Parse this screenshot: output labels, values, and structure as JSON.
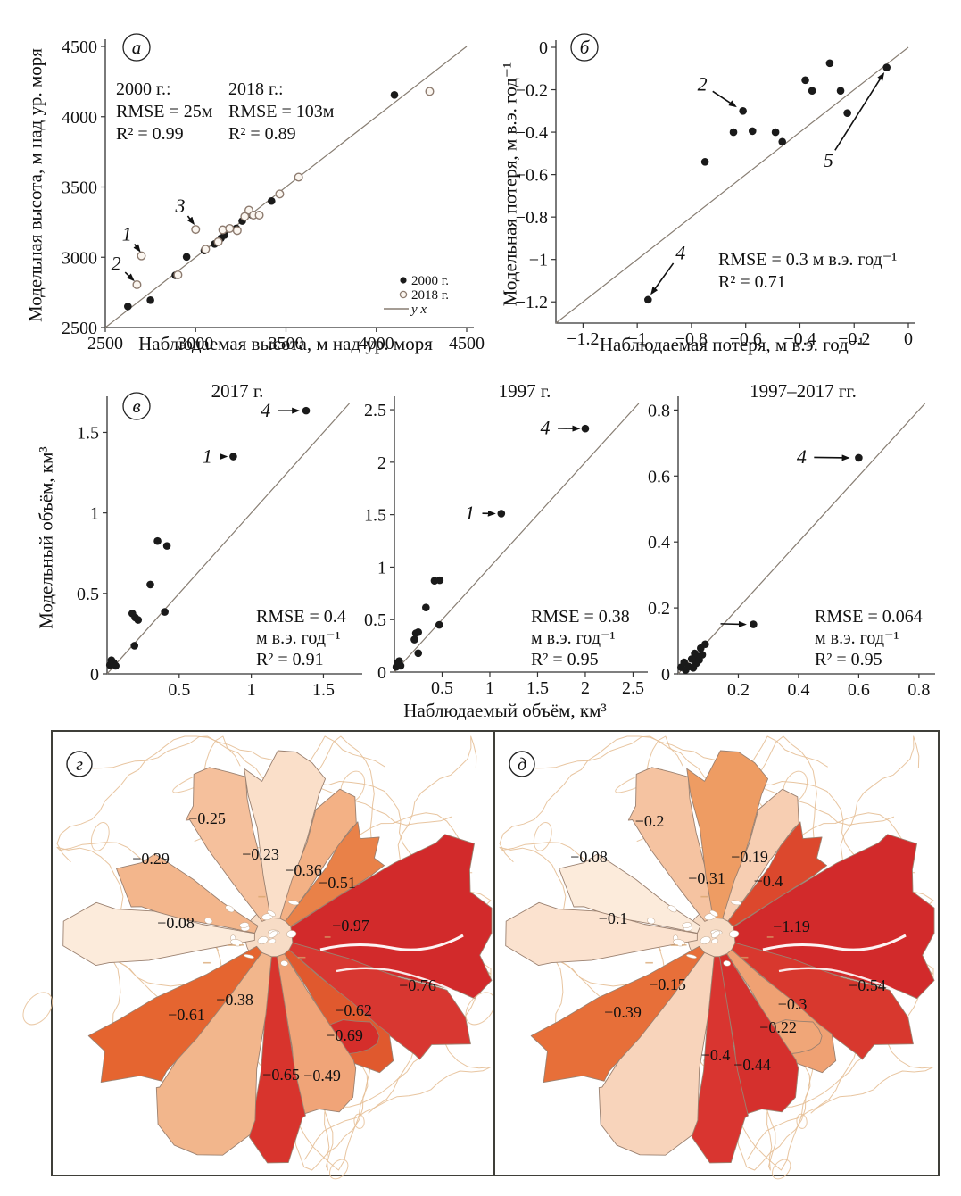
{
  "volume_axis": {
    "xlabel": "Наблюдаемый объём, км³",
    "ylabel": "Модельный объём, км³"
  },
  "chart_data": [
    {
      "id": "a",
      "type": "scatter",
      "panel_letter": "а",
      "xlabel": "Наблюдаемая высота, м над ур. моря",
      "ylabel": "Модельная высота, м над ур. моря",
      "xlim": [
        2500,
        4500
      ],
      "ylim": [
        2500,
        4500
      ],
      "xticks": {
        "v": [
          2500,
          3000,
          3500,
          4000,
          4500
        ],
        "labels": [
          "2500",
          "3000",
          "3500",
          "4000",
          "4500"
        ]
      },
      "yticks": {
        "v": [
          2500,
          3000,
          3500,
          4000,
          4500
        ],
        "labels": [
          "2500",
          "3000",
          "3500",
          "4000",
          "4500"
        ]
      },
      "identity_line": true,
      "series": [
        {
          "name": "2000 г.",
          "marker": "filled",
          "color": "#1a1a1a",
          "points": [
            [
              2625,
              2650
            ],
            [
              2750,
              2695
            ],
            [
              2888,
              2872
            ],
            [
              2950,
              3003
            ],
            [
              3048,
              3048
            ],
            [
              3105,
              3095
            ],
            [
              3140,
              3135
            ],
            [
              3160,
              3158
            ],
            [
              3225,
              3205
            ],
            [
              3258,
              3258
            ],
            [
              3310,
              3302
            ],
            [
              3420,
              3400
            ],
            [
              4100,
              4155
            ]
          ]
        },
        {
          "name": "2018 г.",
          "marker": "open",
          "color": "#8d7b6f",
          "points": [
            [
              2700,
              3010
            ],
            [
              2675,
              2805
            ],
            [
              3000,
              3198
            ],
            [
              2902,
              2875
            ],
            [
              3055,
              3057
            ],
            [
              3125,
              3110
            ],
            [
              3150,
              3195
            ],
            [
              3188,
              3205
            ],
            [
              3230,
              3190
            ],
            [
              3272,
              3290
            ],
            [
              3295,
              3335
            ],
            [
              3320,
              3300
            ],
            [
              3352,
              3300
            ],
            [
              3465,
              3450
            ],
            [
              3570,
              3570
            ],
            [
              4295,
              4180
            ]
          ]
        }
      ],
      "stats": [
        [
          "2000 г.:",
          "RMSE = 25м",
          "R² = 0.99"
        ],
        [
          "2018 г.:",
          "RMSE = 103м",
          "R² = 0.89"
        ]
      ],
      "legend": [
        {
          "marker": "filled",
          "label": "2000 г."
        },
        {
          "marker": "open",
          "label": "2018 г."
        },
        {
          "marker": "line",
          "label": "y x"
        }
      ],
      "annotations": [
        {
          "text": "1",
          "tx": 2620,
          "ty": 3165,
          "ax": 2690,
          "ay": 3045
        },
        {
          "text": "2",
          "tx": 2560,
          "ty": 2955,
          "ax": 2655,
          "ay": 2838
        },
        {
          "text": "3",
          "tx": 2915,
          "ty": 3365,
          "ax": 2988,
          "ay": 3240
        }
      ]
    },
    {
      "id": "b",
      "type": "scatter",
      "panel_letter": "б",
      "xlabel": "Наблюдаемая потеря, м в.э. год⁻¹",
      "ylabel": "Модельная потеря, м в.э. год⁻¹",
      "xlim": [
        -1.3,
        0
      ],
      "ylim": [
        -1.3,
        0
      ],
      "xticks": {
        "v": [
          -1.2,
          -1,
          -0.8,
          -0.6,
          -0.4,
          -0.2,
          0
        ],
        "labels": [
          "−1.2",
          "−1",
          "−0.8",
          "−0.6",
          "−0.4",
          "−0.2",
          "0"
        ]
      },
      "yticks": {
        "v": [
          0,
          -0.2,
          -0.4,
          -0.6,
          -0.8,
          -1,
          -1.2
        ],
        "labels": [
          "0",
          "−0.2",
          "−0.4",
          "−0.6",
          "−0.8",
          "−1",
          "−1.2"
        ]
      },
      "identity_line": true,
      "series": [
        {
          "name": "points",
          "marker": "filled",
          "color": "#1a1a1a",
          "points": [
            [
              -0.96,
              -1.19
            ],
            [
              -0.75,
              -0.54
            ],
            [
              -0.645,
              -0.4
            ],
            [
              -0.61,
              -0.3
            ],
            [
              -0.575,
              -0.395
            ],
            [
              -0.49,
              -0.4
            ],
            [
              -0.465,
              -0.445
            ],
            [
              -0.38,
              -0.155
            ],
            [
              -0.355,
              -0.205
            ],
            [
              -0.29,
              -0.075
            ],
            [
              -0.25,
              -0.205
            ],
            [
              -0.225,
              -0.31
            ],
            [
              -0.08,
              -0.095
            ]
          ]
        }
      ],
      "stats": [
        [
          "RMSE = 0.3 м в.э. год⁻¹",
          "R² = 0.71"
        ]
      ],
      "annotations": [
        {
          "text": "2",
          "tx": -0.76,
          "ty": -0.175,
          "ax": -0.638,
          "ay": -0.278
        },
        {
          "text": "4",
          "tx": -0.84,
          "ty": -0.97,
          "ax": -0.947,
          "ay": -1.16
        },
        {
          "text": "5",
          "tx": -0.295,
          "ty": -0.535,
          "ax": -0.092,
          "ay": -0.125
        }
      ]
    },
    {
      "id": "v1",
      "type": "scatter",
      "panel_letter": "в",
      "title": "2017 г.",
      "xlim": [
        0,
        1.72
      ],
      "ylim": [
        0,
        1.68
      ],
      "xticks": {
        "v": [
          0.5,
          1,
          1.5
        ],
        "labels": [
          "0.5",
          "1",
          "1.5"
        ]
      },
      "yticks": {
        "v": [
          0,
          0.5,
          1,
          1.5
        ],
        "labels": [
          "0",
          "0.5",
          "1",
          "1.5"
        ]
      },
      "identity_line": true,
      "series": [
        {
          "name": "points",
          "marker": "filled",
          "color": "#1a1a1a",
          "points": [
            [
              0.02,
              0.055
            ],
            [
              0.03,
              0.085
            ],
            [
              0.045,
              0.07
            ],
            [
              0.06,
              0.05
            ],
            [
              0.19,
              0.175
            ],
            [
              0.175,
              0.375
            ],
            [
              0.195,
              0.35
            ],
            [
              0.215,
              0.335
            ],
            [
              0.3,
              0.555
            ],
            [
              0.35,
              0.825
            ],
            [
              0.415,
              0.795
            ],
            [
              0.4,
              0.385
            ],
            [
              0.875,
              1.35
            ],
            [
              1.38,
              1.635
            ]
          ]
        }
      ],
      "stats": [
        [
          "RMSE = 0.4",
          "м в.э. год⁻¹",
          "R² = 0.91"
        ]
      ],
      "annotations": [
        {
          "text": "4",
          "tx": 1.1,
          "ty": 1.635,
          "ax": 1.325,
          "ay": 1.635
        },
        {
          "text": "1",
          "tx": 0.695,
          "ty": 1.35,
          "ax": 0.825,
          "ay": 1.35
        }
      ]
    },
    {
      "id": "v2",
      "type": "scatter",
      "title": "1997 г.",
      "xlim": [
        0,
        2.58
      ],
      "ylim": [
        0,
        2.56
      ],
      "xticks": {
        "v": [
          0.5,
          1,
          1.5,
          2,
          2.5
        ],
        "labels": [
          "0.5",
          "1",
          "1.5",
          "2",
          "2.5"
        ]
      },
      "yticks": {
        "v": [
          0,
          0.5,
          1,
          1.5,
          2,
          2.5
        ],
        "labels": [
          "0",
          "0.5",
          "1",
          "1.5",
          "2",
          "2.5"
        ]
      },
      "identity_line": true,
      "series": [
        {
          "name": "points",
          "marker": "filled",
          "color": "#1a1a1a",
          "points": [
            [
              0.02,
              0.05
            ],
            [
              0.035,
              0.09
            ],
            [
              0.05,
              0.105
            ],
            [
              0.065,
              0.06
            ],
            [
              0.25,
              0.18
            ],
            [
              0.21,
              0.31
            ],
            [
              0.225,
              0.37
            ],
            [
              0.25,
              0.38
            ],
            [
              0.33,
              0.615
            ],
            [
              0.42,
              0.87
            ],
            [
              0.475,
              0.875
            ],
            [
              0.47,
              0.45
            ],
            [
              1.12,
              1.51
            ],
            [
              2.0,
              2.32
            ]
          ]
        }
      ],
      "stats": [
        [
          "RMSE = 0.38",
          "м в.э. год⁻¹",
          "R² = 0.95"
        ]
      ],
      "annotations": [
        {
          "text": "4",
          "tx": 1.58,
          "ty": 2.325,
          "ax": 1.93,
          "ay": 2.32
        },
        {
          "text": "1",
          "tx": 0.79,
          "ty": 1.515,
          "ax": 1.045,
          "ay": 1.51
        }
      ]
    },
    {
      "id": "v3",
      "type": "scatter",
      "title": "1997–2017 гг.",
      "xlim": [
        0,
        0.83
      ],
      "ylim": [
        0,
        0.82
      ],
      "xticks": {
        "v": [
          0.2,
          0.4,
          0.6,
          0.8
        ],
        "labels": [
          "0.2",
          "0.4",
          "0.6",
          "0.8"
        ]
      },
      "yticks": {
        "v": [
          0,
          0.2,
          0.4,
          0.6,
          0.8
        ],
        "labels": [
          "0",
          "0.2",
          "0.4",
          "0.6",
          "0.8"
        ]
      },
      "identity_line": true,
      "series": [
        {
          "name": "points",
          "marker": "filled",
          "color": "#1a1a1a",
          "points": [
            [
              0.01,
              0.02
            ],
            [
              0.02,
              0.035
            ],
            [
              0.025,
              0.012
            ],
            [
              0.035,
              0.022
            ],
            [
              0.05,
              0.018
            ],
            [
              0.055,
              0.062
            ],
            [
              0.06,
              0.032
            ],
            [
              0.065,
              0.052
            ],
            [
              0.045,
              0.045
            ],
            [
              0.07,
              0.042
            ],
            [
              0.075,
              0.078
            ],
            [
              0.08,
              0.058
            ],
            [
              0.09,
              0.09
            ],
            [
              0.25,
              0.15
            ],
            [
              0.6,
              0.655
            ]
          ]
        }
      ],
      "stats": [
        [
          "RMSE = 0.064",
          "м в.э. год⁻¹",
          "R² = 0.95"
        ]
      ],
      "annotations": [
        {
          "text": "4",
          "tx": 0.41,
          "ty": 0.657,
          "ax": 0.565,
          "ay": 0.655
        },
        {
          "text": "",
          "tx": 0.135,
          "ty": 0.152,
          "ax": 0.222,
          "ay": 0.15
        }
      ]
    }
  ],
  "maps": {
    "contour_color": "#e6bf96",
    "glacier_outline_color": "#9b8170",
    "panels": [
      {
        "id": "g",
        "letter": "г",
        "glaciers": [
          {
            "gid": "nw",
            "value": "−0.29",
            "color": "#f3b68c",
            "lx": 110,
            "ly": 142
          },
          {
            "gid": "n1",
            "value": "−0.25",
            "color": "#f5c09c",
            "lx": 173,
            "ly": 97
          },
          {
            "gid": "n2",
            "value": "−0.23",
            "color": "#fadfc9",
            "lx": 233,
            "ly": 137
          },
          {
            "gid": "n3",
            "value": "−0.36",
            "color": "#f3b185",
            "lx": 281,
            "ly": 155
          },
          {
            "gid": "ne",
            "value": "−0.51",
            "color": "#e98148",
            "lx": 319,
            "ly": 169
          },
          {
            "gid": "w",
            "value": "−0.08",
            "color": "#fcebdb",
            "lx": 138,
            "ly": 214
          },
          {
            "gid": "e1",
            "value": "−0.97",
            "color": "#d22a2b",
            "lx": 334,
            "ly": 217
          },
          {
            "gid": "e2",
            "value": "−0.76",
            "color": "#d83731",
            "lx": 409,
            "ly": 284
          },
          {
            "gid": "se1",
            "value": "−0.62",
            "color": "#e0592e",
            "lx": 337,
            "ly": 312
          },
          {
            "gid": "se2",
            "value": "−0.69",
            "color": "#d52e2b",
            "lx": 327,
            "ly": 340
          },
          {
            "gid": "s1",
            "value": "−0.49",
            "color": "#f0a478",
            "lx": 302,
            "ly": 385
          },
          {
            "gid": "s2",
            "value": "−0.65",
            "color": "#d8342d",
            "lx": 256,
            "ly": 384
          },
          {
            "gid": "s3",
            "value": "−0.38",
            "color": "#f2b68c",
            "lx": 204,
            "ly": 300
          },
          {
            "gid": "sw",
            "value": "−0.61",
            "color": "#e56530",
            "lx": 150,
            "ly": 317
          }
        ]
      },
      {
        "id": "d",
        "letter": "д",
        "glaciers": [
          {
            "gid": "nw",
            "value": "−0.08",
            "color": "#fcebdb",
            "lx": 105,
            "ly": 140
          },
          {
            "gid": "n1",
            "value": "−0.2",
            "color": "#f5c3a1",
            "lx": 173,
            "ly": 100
          },
          {
            "gid": "n2",
            "value": "−0.31",
            "color": "#ee9c63",
            "lx": 237,
            "ly": 164
          },
          {
            "gid": "n3",
            "value": "−0.19",
            "color": "#f7ceb2",
            "lx": 285,
            "ly": 140
          },
          {
            "gid": "ne",
            "value": "−0.4",
            "color": "#dc482d",
            "lx": 306,
            "ly": 167
          },
          {
            "gid": "w",
            "value": "−0.1",
            "color": "#fbe2cf",
            "lx": 132,
            "ly": 209
          },
          {
            "gid": "e1",
            "value": "−1.19",
            "color": "#d22a2b",
            "lx": 332,
            "ly": 218
          },
          {
            "gid": "e2",
            "value": "−0.54",
            "color": "#d8382e",
            "lx": 417,
            "ly": 284
          },
          {
            "gid": "se1",
            "value": "−0.3",
            "color": "#efa173",
            "lx": 333,
            "ly": 305
          },
          {
            "gid": "se2",
            "value": "−0.22",
            "color": "#f0a678",
            "lx": 317,
            "ly": 331
          },
          {
            "gid": "s1",
            "value": "−0.44",
            "color": "#d5302d",
            "lx": 288,
            "ly": 373
          },
          {
            "gid": "s2",
            "value": "−0.4",
            "color": "#d93530",
            "lx": 247,
            "ly": 362
          },
          {
            "gid": "s3",
            "value": "−0.15",
            "color": "#f8d4bb",
            "lx": 193,
            "ly": 283
          },
          {
            "gid": "sw",
            "value": "−0.39",
            "color": "#e76f39",
            "lx": 143,
            "ly": 314
          }
        ]
      }
    ]
  }
}
